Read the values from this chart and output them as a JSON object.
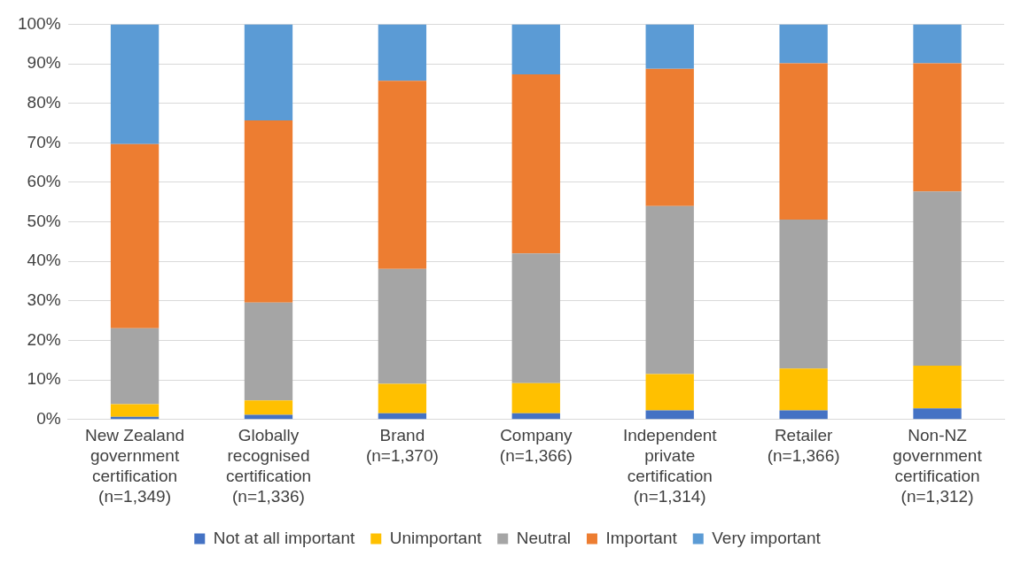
{
  "chart_data": {
    "type": "bar",
    "stacked": true,
    "categories": [
      "New Zealand government certification (n=1,349)",
      "Globally recognised certification (n=1,336)",
      "Brand (n=1,370)",
      "Company (n=1,366)",
      "Independent private certification (n=1,314)",
      "Retailer (n=1,366)",
      "Non-NZ government certification (n=1,312)"
    ],
    "series": [
      {
        "name": "Not at all important",
        "color": "#4472c4",
        "values": [
          0.7,
          1.2,
          1.6,
          1.6,
          2.3,
          2.3,
          2.8
        ]
      },
      {
        "name": "Unimportant",
        "color": "#ffc000",
        "values": [
          3.2,
          3.6,
          7.4,
          7.6,
          9.2,
          10.6,
          10.8
        ]
      },
      {
        "name": "Neutral",
        "color": "#a5a5a5",
        "values": [
          19.2,
          24.8,
          29.1,
          32.8,
          42.5,
          37.7,
          44.1
        ]
      },
      {
        "name": "Important",
        "color": "#ed7d31",
        "values": [
          46.6,
          46.1,
          47.6,
          45.3,
          34.7,
          39.5,
          32.4
        ]
      },
      {
        "name": "Very important",
        "color": "#5b9bd5",
        "values": [
          30.3,
          24.3,
          14.3,
          12.7,
          11.3,
          9.9,
          9.9
        ]
      }
    ],
    "ylim": [
      0,
      100
    ],
    "yticks": [
      {
        "value": 0,
        "label": "0%"
      },
      {
        "value": 10,
        "label": "10%"
      },
      {
        "value": 20,
        "label": "20%"
      },
      {
        "value": 30,
        "label": "30%"
      },
      {
        "value": 40,
        "label": "40%"
      },
      {
        "value": 50,
        "label": "50%"
      },
      {
        "value": 60,
        "label": "60%"
      },
      {
        "value": 70,
        "label": "70%"
      },
      {
        "value": 80,
        "label": "80%"
      },
      {
        "value": 90,
        "label": "90%"
      },
      {
        "value": 100,
        "label": "100%"
      }
    ],
    "grid": "y",
    "legend": "bottom"
  }
}
